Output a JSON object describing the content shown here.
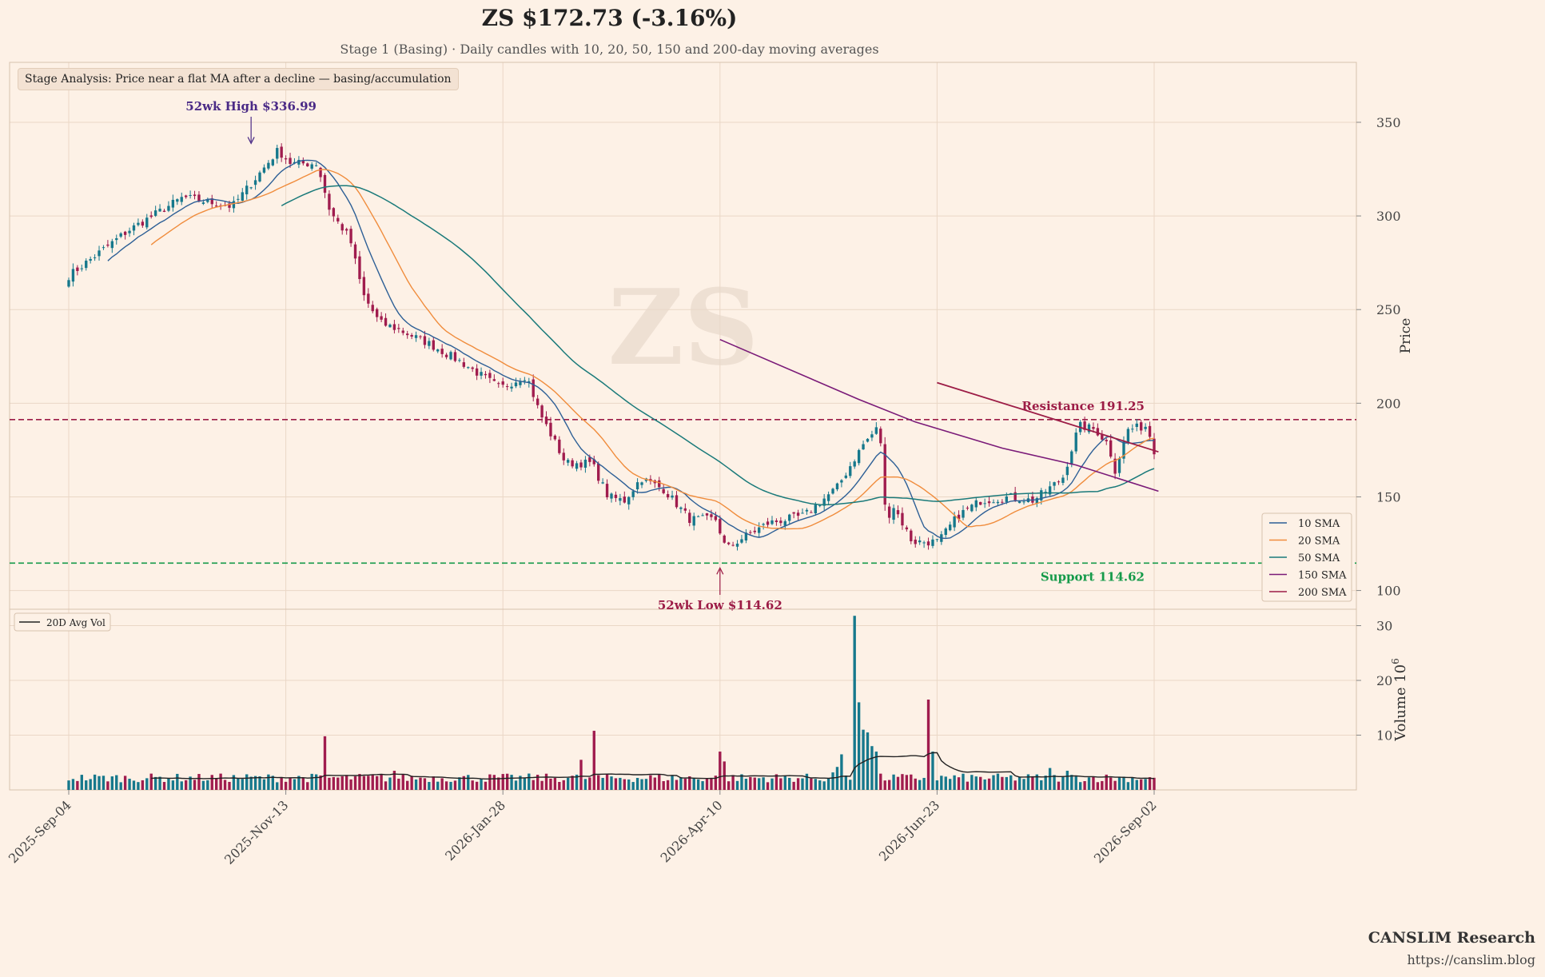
{
  "header": {
    "title": "ZS  $172.73  (-3.16%)",
    "subtitle": "Stage 1 (Basing)  ·  Daily candles with 10, 20, 50, 150 and 200-day moving averages"
  },
  "stage_badge": "Stage Analysis: Price near a flat MA after a decline — basing/accumulation",
  "watermark": "ZS",
  "branding": {
    "name": "CANSLIM Research",
    "url": "https://canslim.blog"
  },
  "colors": {
    "up": "#16788c",
    "down": "#a01c4e",
    "sma10": "#2d5f96",
    "sma20": "#f08c3c",
    "sma50": "#1a7a7a",
    "sma150": "#7a1a78",
    "sma200": "#9c1c46",
    "resistance": "#9c1c46",
    "support": "#159a4a",
    "high": "#4a2a86",
    "low": "#9c1c46",
    "volume_avg": "#222222"
  },
  "chart_data": {
    "type": "candlestick",
    "ticker": "ZS",
    "price_axis": {
      "label": "Price",
      "ylim": [
        90,
        382
      ],
      "ticks": [
        100,
        150,
        200,
        250,
        300,
        350
      ]
    },
    "volume_axis": {
      "label": "Volume 10",
      "label_exponent": "6",
      "ylim": [
        0,
        33
      ],
      "ticks": [
        10,
        20,
        30
      ]
    },
    "x_ticks": [
      "2025-Sep-04",
      "2025-Nov-13",
      "2026-Jan-28",
      "2026-Apr-10",
      "2026-Jun-23",
      "2026-Sep-02"
    ],
    "sessions": 251,
    "anchors": [
      [
        0,
        268
      ],
      [
        18,
        292
      ],
      [
        35,
        310
      ],
      [
        50,
        305
      ],
      [
        58,
        322
      ],
      [
        64,
        335
      ],
      [
        68,
        328
      ],
      [
        76,
        328
      ],
      [
        80,
        302
      ],
      [
        86,
        288
      ],
      [
        90,
        258
      ],
      [
        95,
        243
      ],
      [
        100,
        240
      ],
      [
        110,
        232
      ],
      [
        120,
        222
      ],
      [
        132,
        208
      ],
      [
        140,
        215
      ],
      [
        144,
        195
      ],
      [
        152,
        168
      ],
      [
        160,
        168
      ],
      [
        165,
        150
      ],
      [
        170,
        148
      ],
      [
        175,
        160
      ],
      [
        182,
        154
      ],
      [
        190,
        138
      ],
      [
        198,
        138
      ],
      [
        201,
        122
      ],
      [
        206,
        128
      ],
      [
        214,
        136
      ],
      [
        225,
        140
      ],
      [
        235,
        155
      ],
      [
        243,
        178
      ],
      [
        248,
        188
      ],
      [
        250,
        136
      ],
      [
        252,
        146
      ],
      [
        258,
        126
      ],
      [
        266,
        126
      ],
      [
        272,
        140
      ],
      [
        279,
        148
      ],
      [
        288,
        150
      ],
      [
        295,
        148
      ],
      [
        304,
        160
      ],
      [
        309,
        188
      ],
      [
        314,
        186
      ],
      [
        318,
        178
      ],
      [
        320,
        164
      ],
      [
        324,
        186
      ],
      [
        330,
        188
      ],
      [
        332,
        172.73
      ]
    ],
    "last_close": 172.73,
    "resistance": {
      "label": "Resistance 191.25",
      "value": 191.25
    },
    "support": {
      "label": "Support 114.62",
      "value": 114.62
    },
    "high_annotation": {
      "label": "52wk High $336.99",
      "value": 336.99,
      "date_index": 42
    },
    "low_annotation": {
      "label": "52wk Low $114.62",
      "value": 114.62,
      "date_index": 150
    },
    "sma150_points": [
      [
        150,
        234
      ],
      [
        182,
        202
      ],
      [
        195,
        190
      ],
      [
        215,
        176
      ],
      [
        232,
        167
      ],
      [
        251,
        153
      ]
    ],
    "sma200_points": [
      [
        200,
        211
      ],
      [
        251,
        174
      ]
    ],
    "volume_spikes": [
      [
        59,
        9.8
      ],
      [
        75,
        3.5
      ],
      [
        118,
        5.5
      ],
      [
        121,
        10.8
      ],
      [
        150,
        7
      ],
      [
        151,
        5.2
      ],
      [
        176,
        3.2
      ],
      [
        177,
        4.2
      ],
      [
        178,
        6.5
      ],
      [
        181,
        31.8
      ],
      [
        182,
        16
      ],
      [
        183,
        11
      ],
      [
        184,
        10.5
      ],
      [
        185,
        8
      ],
      [
        186,
        7
      ],
      [
        198,
        16.5
      ],
      [
        199,
        7
      ],
      [
        226,
        4
      ],
      [
        230,
        3.5
      ]
    ],
    "legend": [
      "10 SMA",
      "20 SMA",
      "50 SMA",
      "150 SMA",
      "200 SMA"
    ],
    "volume_legend": "20D Avg Vol",
    "grid": true
  }
}
